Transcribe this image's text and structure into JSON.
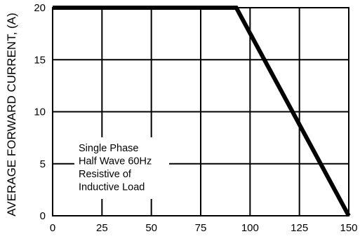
{
  "chart_data": {
    "type": "line",
    "title": "",
    "xlabel": "",
    "ylabel": "AVERAGE FORWARD CURRENT, (A)",
    "xlim": [
      0,
      150
    ],
    "ylim": [
      0,
      20
    ],
    "x_ticks": [
      0,
      25,
      50,
      75,
      100,
      125,
      150
    ],
    "y_ticks": [
      0,
      5,
      10,
      15,
      20
    ],
    "grid": true,
    "series": [
      {
        "x": [
          0,
          93,
          150
        ],
        "y": [
          20,
          20,
          0
        ]
      }
    ],
    "annotation": [
      "Single Phase",
      "Half Wave 60Hz",
      "Resistive of",
      "Inductive Load"
    ]
  }
}
